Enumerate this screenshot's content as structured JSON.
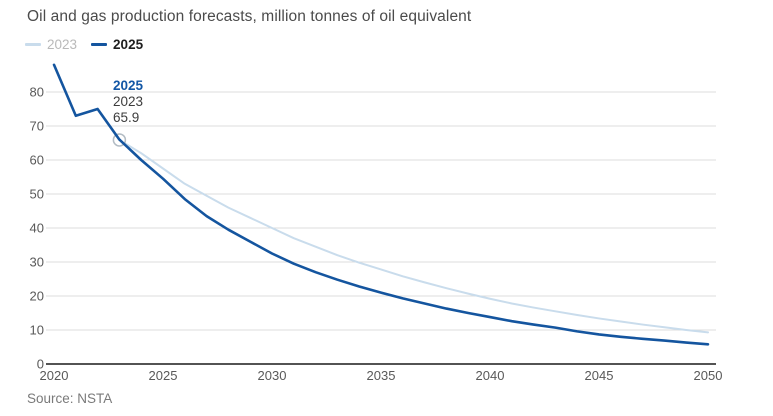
{
  "header": {
    "title": "Oil and gas production forecasts, million tonnes of oil equivalent"
  },
  "legend": {
    "items": [
      {
        "label": "2023",
        "color": "#c9dcec"
      },
      {
        "label": "2025",
        "color": "#14559f"
      }
    ]
  },
  "annotation": {
    "series_label": "2025",
    "callout_year": "2023",
    "callout_value": "65.9"
  },
  "footer": {
    "source": "Source: NSTA"
  },
  "colors": {
    "series_2023": "#c9dcec",
    "series_2025": "#14559f",
    "gridline": "#dcdcdc",
    "axis_line": "#1a1a1a",
    "tick_label": "#595959",
    "annotation_blue": "#1357a6",
    "marker_stroke": "#b3bcc4"
  },
  "chart_data": {
    "type": "line",
    "title": "Oil and gas production forecasts, million tonnes of oil equivalent",
    "xlabel": "",
    "ylabel": "million tonnes of oil equivalent",
    "xlim": [
      2020,
      2050
    ],
    "ylim": [
      0,
      80
    ],
    "x_ticks": [
      2020,
      2025,
      2030,
      2035,
      2040,
      2045,
      2050
    ],
    "y_ticks": [
      0,
      10,
      20,
      30,
      40,
      50,
      60,
      70,
      80
    ],
    "grid": "horizontal",
    "legend_position": "top-left",
    "series": [
      {
        "name": "2023",
        "color": "#c9dcec",
        "stroke_width": 2,
        "x": [
          2023,
          2024,
          2025,
          2026,
          2027,
          2028,
          2029,
          2030,
          2031,
          2032,
          2033,
          2034,
          2035,
          2036,
          2037,
          2038,
          2039,
          2040,
          2041,
          2042,
          2043,
          2044,
          2045,
          2046,
          2047,
          2048,
          2049,
          2050
        ],
        "values": [
          65.9,
          62,
          57.5,
          53,
          49.5,
          46,
          43,
          40,
          37,
          34.5,
          32,
          29.8,
          27.8,
          25.8,
          24,
          22.3,
          20.7,
          19.2,
          17.8,
          16.6,
          15.5,
          14.4,
          13.4,
          12.5,
          11.6,
          10.8,
          10,
          9.3
        ]
      },
      {
        "name": "2025",
        "color": "#14559f",
        "stroke_width": 2.6,
        "x": [
          2020,
          2021,
          2022,
          2023,
          2024,
          2025,
          2026,
          2027,
          2028,
          2029,
          2030,
          2031,
          2032,
          2033,
          2034,
          2035,
          2036,
          2037,
          2038,
          2039,
          2040,
          2041,
          2042,
          2043,
          2044,
          2045,
          2046,
          2047,
          2048,
          2049,
          2050
        ],
        "values": [
          88,
          73,
          75,
          66,
          60,
          54.5,
          48.5,
          43.5,
          39.5,
          36,
          32.5,
          29.5,
          27,
          24.8,
          22.8,
          21,
          19.3,
          17.8,
          16.3,
          15,
          13.8,
          12.6,
          11.6,
          10.7,
          9.6,
          8.7,
          8,
          7.4,
          6.9,
          6.3,
          5.8
        ]
      }
    ],
    "marker": {
      "x": 2023,
      "y": 65.9,
      "style": "open-circle"
    }
  }
}
